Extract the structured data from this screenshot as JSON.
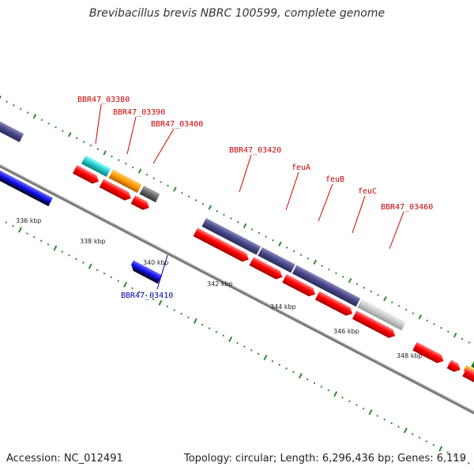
{
  "title": "Brevibacillus brevis NBRC 100599, complete genome",
  "footer": {
    "accession": "Accession: NC_012491",
    "summary": "Topology: circular; Length: 6,296,436 bp; Genes: 6,119"
  },
  "colors": {
    "backbone": "#7a7a7a",
    "tick": "#2e8b2e",
    "forward_label": "#cc0000",
    "reverse_label": "#0000aa",
    "cds": "#ff0000",
    "gene_purple": "#4a4a8a",
    "reverse_gene": "#1010ee",
    "cyan": "#20c8c8",
    "orange": "#ff9900",
    "gray": "#777777",
    "lightgray": "#c8c8c8",
    "green": "#22aa22"
  },
  "scale_labels": [
    "336 kbp",
    "338 kbp",
    "340 kbp",
    "342 kbp",
    "344 kbp",
    "346 kbp",
    "348 kbp"
  ],
  "gene_labels": [
    {
      "text": "BBR47_03380",
      "strand": "forward"
    },
    {
      "text": "BBR47_03390",
      "strand": "forward"
    },
    {
      "text": "BBR47_03400",
      "strand": "forward"
    },
    {
      "text": "BBR47_03410",
      "strand": "reverse"
    },
    {
      "text": "BBR47_03420",
      "strand": "forward"
    },
    {
      "text": "feuA",
      "strand": "forward"
    },
    {
      "text": "feuB",
      "strand": "forward"
    },
    {
      "text": "feuC",
      "strand": "forward"
    },
    {
      "text": "BBR47_03460",
      "strand": "forward"
    }
  ]
}
